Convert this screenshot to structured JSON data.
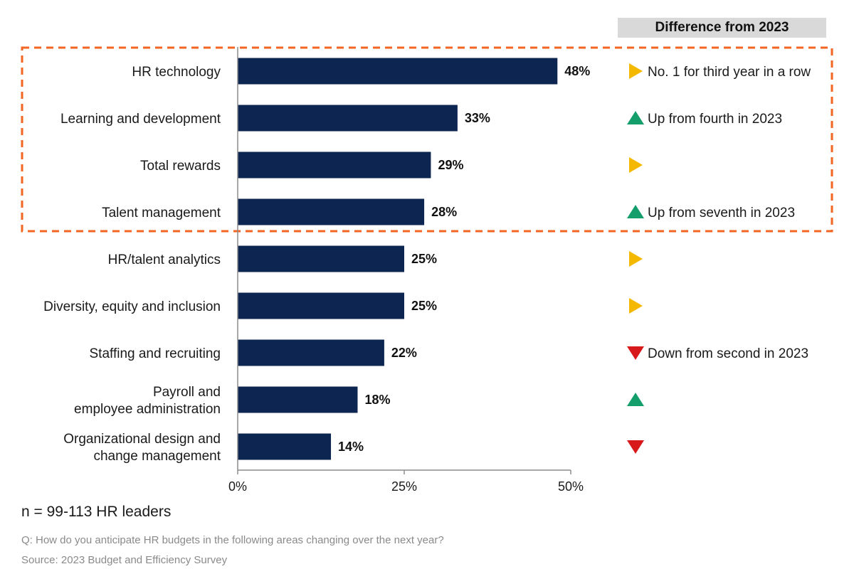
{
  "chart_data": {
    "type": "bar",
    "orientation": "horizontal",
    "categories": [
      [
        "HR technology"
      ],
      [
        "Learning and development"
      ],
      [
        "Total rewards"
      ],
      [
        "Talent management"
      ],
      [
        "HR/talent analytics"
      ],
      [
        "Diversity, equity and inclusion"
      ],
      [
        "Staffing and recruiting"
      ],
      [
        "Payroll and",
        "employee administration"
      ],
      [
        "Organizational design and",
        "change management"
      ]
    ],
    "values": [
      48,
      33,
      29,
      28,
      25,
      25,
      22,
      18,
      14
    ],
    "value_labels": [
      "48%",
      "33%",
      "29%",
      "28%",
      "25%",
      "25%",
      "22%",
      "18%",
      "14%"
    ],
    "xlim": [
      0,
      50
    ],
    "xticks": [
      0,
      25,
      50
    ],
    "xtick_labels": [
      "0%",
      "25%",
      "50%"
    ],
    "bar_color": "#0d2551",
    "highlight": {
      "from_index": 0,
      "to_index": 3,
      "color": "#f26522",
      "style": "dashed"
    },
    "difference_header": "Difference from 2023",
    "differences": [
      {
        "indicator": "right",
        "color": "#f5b800",
        "note": "No. 1 for third year in a row"
      },
      {
        "indicator": "up",
        "color": "#149e6b",
        "note": "Up from fourth in 2023"
      },
      {
        "indicator": "right",
        "color": "#f5b800",
        "note": ""
      },
      {
        "indicator": "up",
        "color": "#149e6b",
        "note": "Up from seventh in 2023"
      },
      {
        "indicator": "right",
        "color": "#f5b800",
        "note": ""
      },
      {
        "indicator": "right",
        "color": "#f5b800",
        "note": ""
      },
      {
        "indicator": "down",
        "color": "#d7191c",
        "note": "Down from second in 2023"
      },
      {
        "indicator": "up",
        "color": "#149e6b",
        "note": ""
      },
      {
        "indicator": "down",
        "color": "#d7191c",
        "note": ""
      }
    ],
    "grid": false,
    "legend": "none"
  },
  "footer": {
    "sample": "n = 99-113 HR leaders",
    "question": "Q: How do you anticipate HR budgets in the following areas changing over the next year?",
    "source": "Source: 2023 Budget and Efficiency Survey"
  }
}
